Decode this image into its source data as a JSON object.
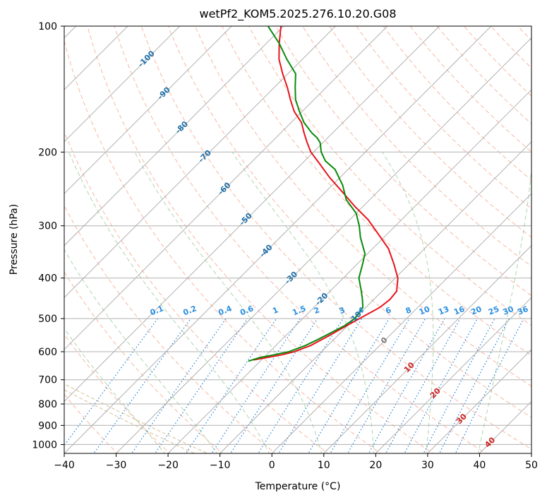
{
  "chart_data": {
    "type": "line",
    "title": "wetPf2_KOM5.2025.276.10.20.G08",
    "xlabel": "Temperature (°C)",
    "ylabel": "Pressure (hPa)",
    "xlim": [
      -40,
      50
    ],
    "ylim": [
      1050,
      100
    ],
    "y_scale": "log",
    "x_ticks": [
      -40,
      -30,
      -20,
      -10,
      0,
      10,
      20,
      30,
      40,
      50
    ],
    "x_tick_labels": [
      "−40",
      "−30",
      "−20",
      "−10",
      "0",
      "10",
      "20",
      "30",
      "40",
      "50"
    ],
    "y_ticks": [
      100,
      200,
      300,
      400,
      500,
      600,
      700,
      800,
      900,
      1000
    ],
    "y_tick_labels": [
      "100",
      "200",
      "300",
      "400",
      "500",
      "600",
      "700",
      "800",
      "900",
      "1000"
    ],
    "skew": 45,
    "isotherm_labels": [
      {
        "t": -100,
        "p": 120,
        "text": "-100"
      },
      {
        "t": -90,
        "p": 145,
        "text": "-90"
      },
      {
        "t": -80,
        "p": 175,
        "text": "-80"
      },
      {
        "t": -70,
        "p": 205,
        "text": "-70"
      },
      {
        "t": -60,
        "p": 245,
        "text": "-60"
      },
      {
        "t": -50,
        "p": 290,
        "text": "-50"
      },
      {
        "t": -40,
        "p": 345,
        "text": "-40"
      },
      {
        "t": -30,
        "p": 400,
        "text": "-30"
      },
      {
        "t": -20,
        "p": 450,
        "text": "-20"
      },
      {
        "t": -10,
        "p": 498,
        "text": "-10"
      },
      {
        "t": 0,
        "p": 565,
        "text": "0"
      },
      {
        "t": 10,
        "p": 655,
        "text": "10"
      },
      {
        "t": 20,
        "p": 755,
        "text": "20"
      },
      {
        "t": 30,
        "p": 870,
        "text": "30"
      },
      {
        "t": 40,
        "p": 990,
        "text": "40"
      }
    ],
    "mixing_ratio_labels": [
      {
        "w": 0.1,
        "text": "0.1"
      },
      {
        "w": 0.2,
        "text": "0.2"
      },
      {
        "w": 0.4,
        "text": "0.4"
      },
      {
        "w": 0.6,
        "text": "0.6"
      },
      {
        "w": 1,
        "text": "1"
      },
      {
        "w": 1.5,
        "text": "1.5"
      },
      {
        "w": 2,
        "text": "2"
      },
      {
        "w": 3,
        "text": "3"
      },
      {
        "w": 4,
        "text": "4"
      },
      {
        "w": 6,
        "text": "6"
      },
      {
        "w": 8,
        "text": "8"
      },
      {
        "w": 10,
        "text": "10"
      },
      {
        "w": 13,
        "text": "13"
      },
      {
        "w": 16,
        "text": "16"
      },
      {
        "w": 20,
        "text": "20"
      },
      {
        "w": 25,
        "text": "25"
      },
      {
        "w": 30,
        "text": "30"
      },
      {
        "w": 36,
        "text": "36"
      }
    ],
    "mixing_ratio_label_pressure": 500,
    "series": [
      {
        "name": "Temperature",
        "color": "#e8141c",
        "points": [
          {
            "p": 628,
            "t": -21.5
          },
          {
            "p": 620,
            "t": -19.5
          },
          {
            "p": 610,
            "t": -17
          },
          {
            "p": 600,
            "t": -15.3
          },
          {
            "p": 580,
            "t": -13.3
          },
          {
            "p": 550,
            "t": -11.7
          },
          {
            "p": 520,
            "t": -10.2
          },
          {
            "p": 490,
            "t": -8.5
          },
          {
            "p": 470,
            "t": -7.3
          },
          {
            "p": 450,
            "t": -6.9
          },
          {
            "p": 430,
            "t": -7.2
          },
          {
            "p": 400,
            "t": -9.5
          },
          {
            "p": 370,
            "t": -13
          },
          {
            "p": 340,
            "t": -17
          },
          {
            "p": 310,
            "t": -22.5
          },
          {
            "p": 290,
            "t": -26.5
          },
          {
            "p": 270,
            "t": -31.5
          },
          {
            "p": 250,
            "t": -36.5
          },
          {
            "p": 230,
            "t": -42
          },
          {
            "p": 210,
            "t": -47.5
          },
          {
            "p": 200,
            "t": -50.5
          },
          {
            "p": 190,
            "t": -53
          },
          {
            "p": 180,
            "t": -55.5
          },
          {
            "p": 170,
            "t": -58
          },
          {
            "p": 160,
            "t": -61.5
          },
          {
            "p": 150,
            "t": -64.5
          },
          {
            "p": 140,
            "t": -67.5
          },
          {
            "p": 130,
            "t": -71
          },
          {
            "p": 120,
            "t": -74.5
          },
          {
            "p": 110,
            "t": -77.5
          },
          {
            "p": 100,
            "t": -80.5
          }
        ]
      },
      {
        "name": "Dewpoint",
        "color": "#0a8a0a",
        "points": [
          {
            "p": 632,
            "t": -22.3
          },
          {
            "p": 620,
            "t": -20.8
          },
          {
            "p": 610,
            "t": -18.5
          },
          {
            "p": 600,
            "t": -16.3
          },
          {
            "p": 580,
            "t": -14.3
          },
          {
            "p": 560,
            "t": -13
          },
          {
            "p": 540,
            "t": -11.8
          },
          {
            "p": 520,
            "t": -10.6
          },
          {
            "p": 500,
            "t": -10
          },
          {
            "p": 470,
            "t": -10.6
          },
          {
            "p": 450,
            "t": -12.2
          },
          {
            "p": 430,
            "t": -14
          },
          {
            "p": 400,
            "t": -17
          },
          {
            "p": 370,
            "t": -19
          },
          {
            "p": 350,
            "t": -20.5
          },
          {
            "p": 320,
            "t": -24.5
          },
          {
            "p": 300,
            "t": -27
          },
          {
            "p": 280,
            "t": -30
          },
          {
            "p": 260,
            "t": -34.5
          },
          {
            "p": 240,
            "t": -38
          },
          {
            "p": 220,
            "t": -42.5
          },
          {
            "p": 210,
            "t": -46
          },
          {
            "p": 200,
            "t": -48.5
          },
          {
            "p": 190,
            "t": -50.5
          },
          {
            "p": 185,
            "t": -52
          },
          {
            "p": 180,
            "t": -54
          },
          {
            "p": 170,
            "t": -57.5
          },
          {
            "p": 160,
            "t": -60.5
          },
          {
            "p": 150,
            "t": -63.5
          },
          {
            "p": 140,
            "t": -66
          },
          {
            "p": 130,
            "t": -68.5
          },
          {
            "p": 120,
            "t": -73
          },
          {
            "p": 110,
            "t": -77.5
          },
          {
            "p": 100,
            "t": -83
          }
        ]
      }
    ],
    "colors": {
      "isotherm": "#b0b0b0",
      "isobar": "#b0b0b0",
      "dry_adiabat": "#f5a58a",
      "moist_adiabat": "#9fcf9f",
      "mixing_ratio": "#1f7fd6",
      "isotherm_label_cold": "#1f6fa8",
      "isotherm_label_zero": "#7a7a7a",
      "isotherm_label_warm": "#d02020",
      "mixing_label": "#2b8fe0",
      "beige_curve": "#ddc9a8"
    }
  }
}
